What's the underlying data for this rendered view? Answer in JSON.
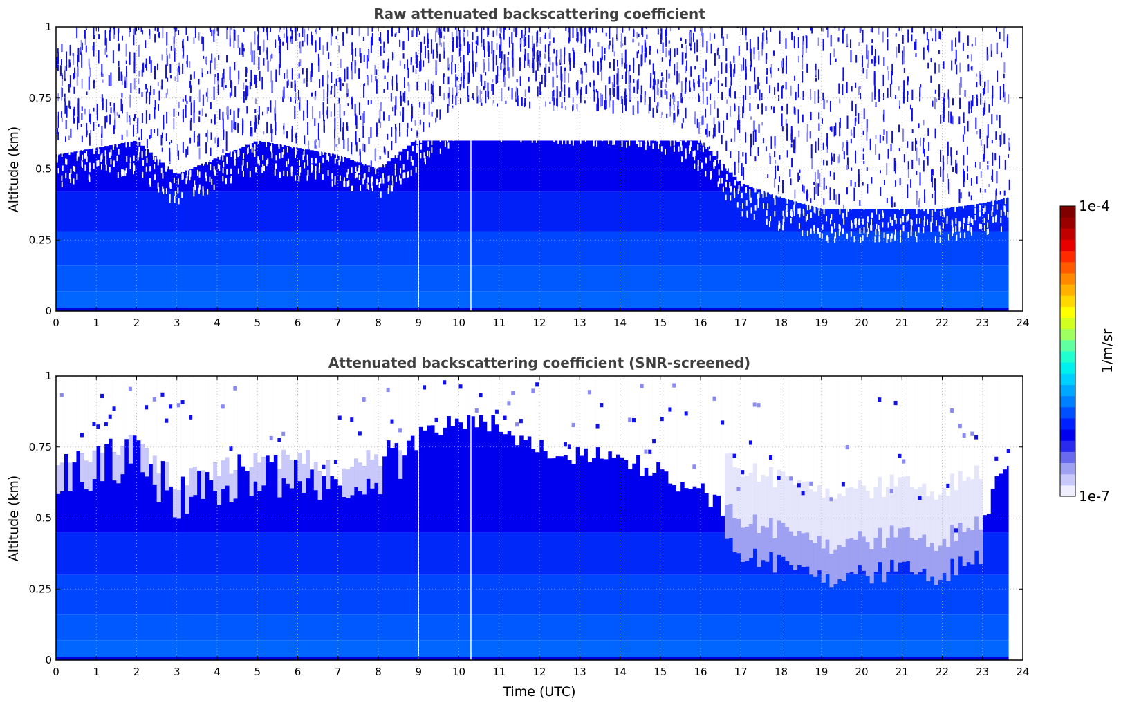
{
  "chart_data": [
    {
      "type": "heatmap",
      "title": "Raw attenuated backscattering coefficient",
      "xlabel": "",
      "ylabel": "Altitude (km)",
      "xlim": [
        0,
        24
      ],
      "ylim": [
        0,
        1
      ],
      "xticks": [
        "0",
        "1",
        "2",
        "3",
        "4",
        "5",
        "6",
        "7",
        "8",
        "9",
        "10",
        "11",
        "12",
        "13",
        "14",
        "15",
        "16",
        "17",
        "18",
        "19",
        "20",
        "21",
        "22",
        "23",
        "24"
      ],
      "yticks": [
        "0",
        "0.25",
        "0.5",
        "0.75",
        "1"
      ],
      "grid": true,
      "data_end_time": 23.65,
      "gaps_utc": [
        9.0,
        10.3
      ],
      "noise_floor_altitude_km": [
        [
          0,
          0.55
        ],
        [
          2,
          0.6
        ],
        [
          3,
          0.48
        ],
        [
          5,
          0.6
        ],
        [
          7,
          0.55
        ],
        [
          8,
          0.5
        ],
        [
          10,
          0.72
        ],
        [
          13,
          0.7
        ],
        [
          15,
          0.68
        ],
        [
          16,
          0.6
        ],
        [
          17,
          0.45
        ],
        [
          18,
          0.4
        ],
        [
          19,
          0.36
        ],
        [
          20,
          0.36
        ],
        [
          21,
          0.36
        ],
        [
          22,
          0.36
        ],
        [
          23,
          0.38
        ],
        [
          23.65,
          0.4
        ]
      ],
      "colorscale": "jet-like, white at 1e-7 to dark red at 1e-4"
    },
    {
      "type": "heatmap",
      "title": "Attenuated backscattering coefficient (SNR-screened)",
      "xlabel": "Time (UTC)",
      "ylabel": "Altitude (km)",
      "xlim": [
        0,
        24
      ],
      "ylim": [
        0,
        1
      ],
      "xticks": [
        "0",
        "1",
        "2",
        "3",
        "4",
        "5",
        "6",
        "7",
        "8",
        "9",
        "10",
        "11",
        "12",
        "13",
        "14",
        "15",
        "16",
        "17",
        "18",
        "19",
        "20",
        "21",
        "22",
        "23",
        "24"
      ],
      "yticks": [
        "0",
        "0.25",
        "0.5",
        "0.75",
        "1"
      ],
      "grid": true,
      "data_end_time": 23.65,
      "gaps_utc": [
        9.0,
        10.3
      ],
      "boundary_layer_top_km": [
        [
          0,
          0.7
        ],
        [
          1,
          0.72
        ],
        [
          2,
          0.78
        ],
        [
          3,
          0.62
        ],
        [
          4,
          0.68
        ],
        [
          5,
          0.7
        ],
        [
          6,
          0.72
        ],
        [
          7,
          0.65
        ],
        [
          8,
          0.72
        ],
        [
          9,
          0.78
        ],
        [
          10,
          0.85
        ],
        [
          11,
          0.82
        ],
        [
          12,
          0.74
        ],
        [
          13,
          0.72
        ],
        [
          14,
          0.7
        ],
        [
          15,
          0.66
        ],
        [
          16,
          0.6
        ],
        [
          17,
          0.5
        ],
        [
          18,
          0.45
        ],
        [
          19,
          0.4
        ],
        [
          20,
          0.42
        ],
        [
          21,
          0.44
        ],
        [
          22,
          0.42
        ],
        [
          23,
          0.5
        ],
        [
          23.65,
          0.72
        ]
      ],
      "colorscale": "jet-like, white at 1e-7 to dark red at 1e-4"
    }
  ],
  "colorbar": {
    "label": "1/m/sr",
    "max_label": "1e-4",
    "min_label": "1e-7",
    "colors": [
      "#eeeeff",
      "#c8c8fa",
      "#9ea0f2",
      "#6a6aee",
      "#2a2aee",
      "#0000ee",
      "#0020ff",
      "#0050ff",
      "#0080ff",
      "#00a8ff",
      "#00d0ff",
      "#00f0f0",
      "#20ffd0",
      "#60ffa0",
      "#a0ff60",
      "#d0ff20",
      "#ffff00",
      "#ffd800",
      "#ffb000",
      "#ff8800",
      "#ff5a00",
      "#ff2a00",
      "#e80000",
      "#c00000",
      "#9a0000",
      "#800000"
    ]
  }
}
